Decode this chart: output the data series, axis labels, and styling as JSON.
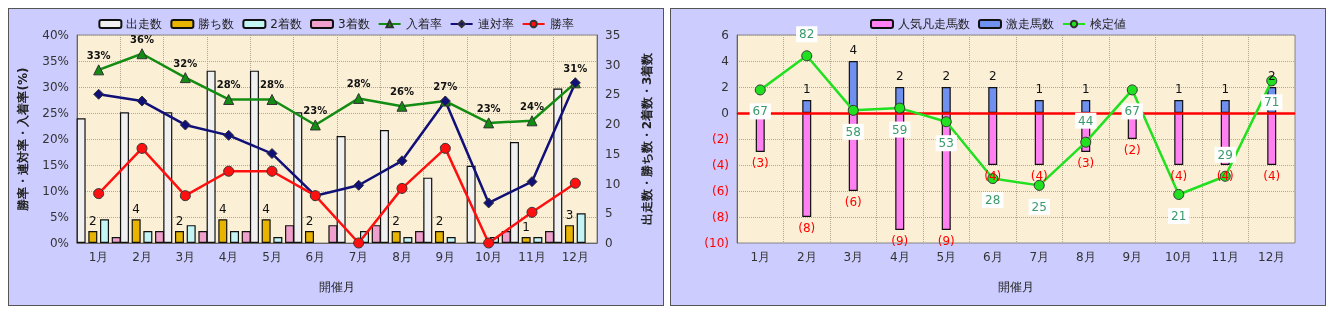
{
  "chart_data": [
    {
      "type": "bar",
      "xlabel": "開催月",
      "ylabel": "勝率・連対率・入着率(%)",
      "y2label": "出走数・勝ち数・2着数・3着数",
      "categories": [
        "1月",
        "2月",
        "3月",
        "4月",
        "5月",
        "6月",
        "7月",
        "8月",
        "9月",
        "10月",
        "11月",
        "12月"
      ],
      "series": [
        {
          "name": "出走数",
          "color": "#f0f0f0",
          "axis": "y2",
          "values": [
            21,
            22,
            22,
            29,
            29,
            22,
            18,
            19,
            11,
            13,
            17,
            26
          ]
        },
        {
          "name": "勝ち数",
          "color": "#e8b400",
          "axis": "y2",
          "values": [
            2,
            4,
            2,
            4,
            4,
            2,
            0,
            2,
            2,
            0,
            1,
            3
          ],
          "value_labels": [
            "2",
            "4",
            "2",
            "4",
            "4",
            "2",
            null,
            "2",
            "2",
            null,
            "1",
            "3"
          ]
        },
        {
          "name": "2着数",
          "color": "#c4f4f4",
          "axis": "y2",
          "values": [
            4,
            2,
            3,
            2,
            1,
            0,
            2,
            1,
            1,
            1,
            1,
            5
          ]
        },
        {
          "name": "3着数",
          "color": "#f0a0cc",
          "axis": "y2",
          "values": [
            1,
            2,
            2,
            2,
            3,
            3,
            3,
            2,
            0,
            2,
            2,
            0
          ]
        },
        {
          "name": "入着率",
          "type": "line",
          "color": "#128c12",
          "marker": "triangle",
          "values": [
            33.3,
            36.4,
            31.8,
            27.6,
            27.6,
            22.7,
            27.8,
            26.3,
            27.3,
            23.1,
            23.5,
            30.8
          ],
          "value_labels": [
            "33%",
            "36%",
            "32%",
            "28%",
            "28%",
            "23%",
            "28%",
            "26%",
            "27%",
            "23%",
            "24%",
            "31%"
          ]
        },
        {
          "name": "連対率",
          "type": "line",
          "color": "#101078",
          "marker": "diamond",
          "values": [
            28.6,
            27.3,
            22.7,
            20.7,
            17.2,
            9.1,
            11.1,
            15.8,
            27.3,
            7.7,
            11.8,
            30.8
          ]
        },
        {
          "name": "勝率",
          "type": "line",
          "color": "#ff1010",
          "marker": "circle",
          "values": [
            9.5,
            18.2,
            9.1,
            13.8,
            13.8,
            9.1,
            0,
            10.5,
            18.2,
            0,
            5.9,
            11.5
          ]
        }
      ],
      "ylim": [
        0,
        40
      ],
      "yticks": [
        {
          "value": 0,
          "label": "0%"
        },
        {
          "value": 5,
          "label": "5%"
        },
        {
          "value": 10,
          "label": "10%"
        },
        {
          "value": 15,
          "label": "15%"
        },
        {
          "value": 20,
          "label": "20%"
        },
        {
          "value": 25,
          "label": "25%"
        },
        {
          "value": 30,
          "label": "30%"
        },
        {
          "value": 35,
          "label": "35%"
        },
        {
          "value": 40,
          "label": "40%"
        }
      ],
      "y2lim": [
        0,
        35
      ],
      "y2ticks": [
        0,
        5,
        10,
        15,
        20,
        25,
        30,
        35
      ],
      "grid": true,
      "legend": "top"
    },
    {
      "type": "bar",
      "xlabel": "開催月",
      "stacked": true,
      "categories": [
        "1月",
        "2月",
        "3月",
        "4月",
        "5月",
        "6月",
        "7月",
        "8月",
        "9月",
        "10月",
        "11月",
        "12月"
      ],
      "series": [
        {
          "name": "人気凡走馬数",
          "color": "#ff80f0",
          "values": [
            -3,
            -8,
            -6,
            -9,
            -9,
            -4,
            -4,
            -3,
            -2,
            -4,
            -4,
            -4
          ],
          "value_labels": [
            "(3)",
            "(8)",
            "(6)",
            "(9)",
            "(9)",
            "(4)",
            "(4)",
            "(3)",
            "(2)",
            "(4)",
            "(4)",
            "(4)"
          ]
        },
        {
          "name": "激走馬数",
          "color": "#7090f0",
          "values": [
            0,
            1,
            4,
            2,
            2,
            2,
            1,
            1,
            0,
            1,
            1,
            2
          ],
          "value_labels": [
            null,
            "1",
            "4",
            "2",
            "2",
            "2",
            "1",
            "1",
            null,
            "1",
            "1",
            "2"
          ]
        },
        {
          "name": "検定値",
          "type": "line",
          "color": "#20e020",
          "marker": "circle",
          "axis": "y2",
          "values": [
            67,
            82,
            58,
            59,
            53,
            28,
            25,
            44,
            67,
            21,
            29,
            71
          ],
          "value_labels": [
            "67",
            "82",
            "58",
            "59",
            "53",
            "28",
            "25",
            "44",
            "67",
            "21",
            "29",
            "71"
          ]
        }
      ],
      "ylim": [
        -10,
        6
      ],
      "yticks": [
        {
          "value": -10,
          "label": "(10)"
        },
        {
          "value": -8,
          "label": "(8)"
        },
        {
          "value": -6,
          "label": "(6)"
        },
        {
          "value": -4,
          "label": "(4)"
        },
        {
          "value": -2,
          "label": "(2)"
        },
        0,
        2,
        4,
        6
      ],
      "ref_lines": [
        {
          "axis": "y",
          "value": 0,
          "color": "#ff0000"
        }
      ],
      "grid": true,
      "legend": "top"
    }
  ]
}
